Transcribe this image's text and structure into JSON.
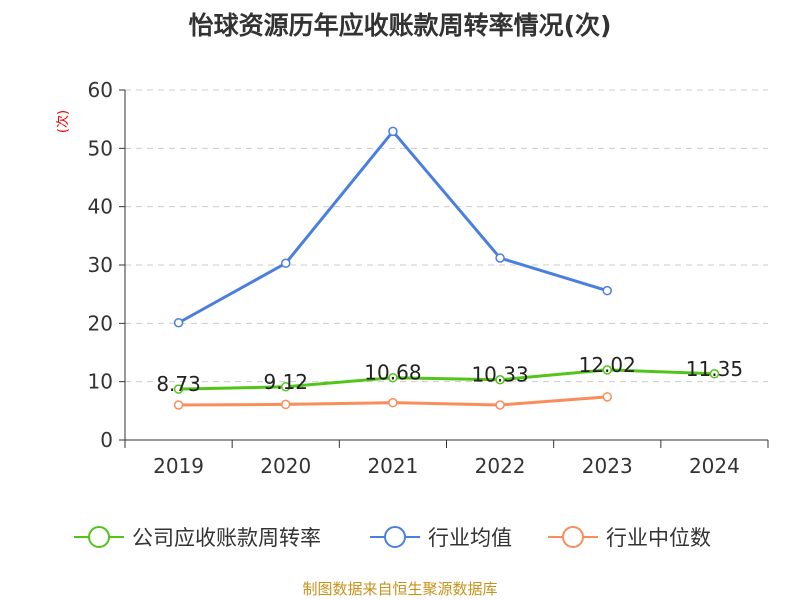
{
  "chart_data": {
    "type": "line",
    "title": "怡球资源历年应收账款周转率情况(次)",
    "ylabel": "(次)",
    "xlabel": "",
    "categories": [
      "2019",
      "2020",
      "2021",
      "2022",
      "2023",
      "2024"
    ],
    "ylim": [
      0,
      60
    ],
    "yticks": [
      0,
      10,
      20,
      30,
      40,
      50,
      60
    ],
    "grid": true,
    "legend_position": "bottom",
    "series": [
      {
        "name": "公司应收账款周转率",
        "color": "#52c41a",
        "values": [
          8.73,
          9.12,
          10.68,
          10.33,
          12.02,
          11.35
        ],
        "labels": [
          "8.73",
          "9.12",
          "10.68",
          "10.33",
          "12.02",
          "11.35"
        ]
      },
      {
        "name": "行业均值",
        "color": "#4a7fdf",
        "values": [
          20.1,
          30.3,
          52.9,
          31.2,
          25.6,
          null
        ]
      },
      {
        "name": "行业中位数",
        "color": "#f98d5b",
        "values": [
          6.0,
          6.1,
          6.4,
          6.0,
          7.4,
          null
        ]
      }
    ]
  },
  "source": "制图数据来自恒生聚源数据库"
}
